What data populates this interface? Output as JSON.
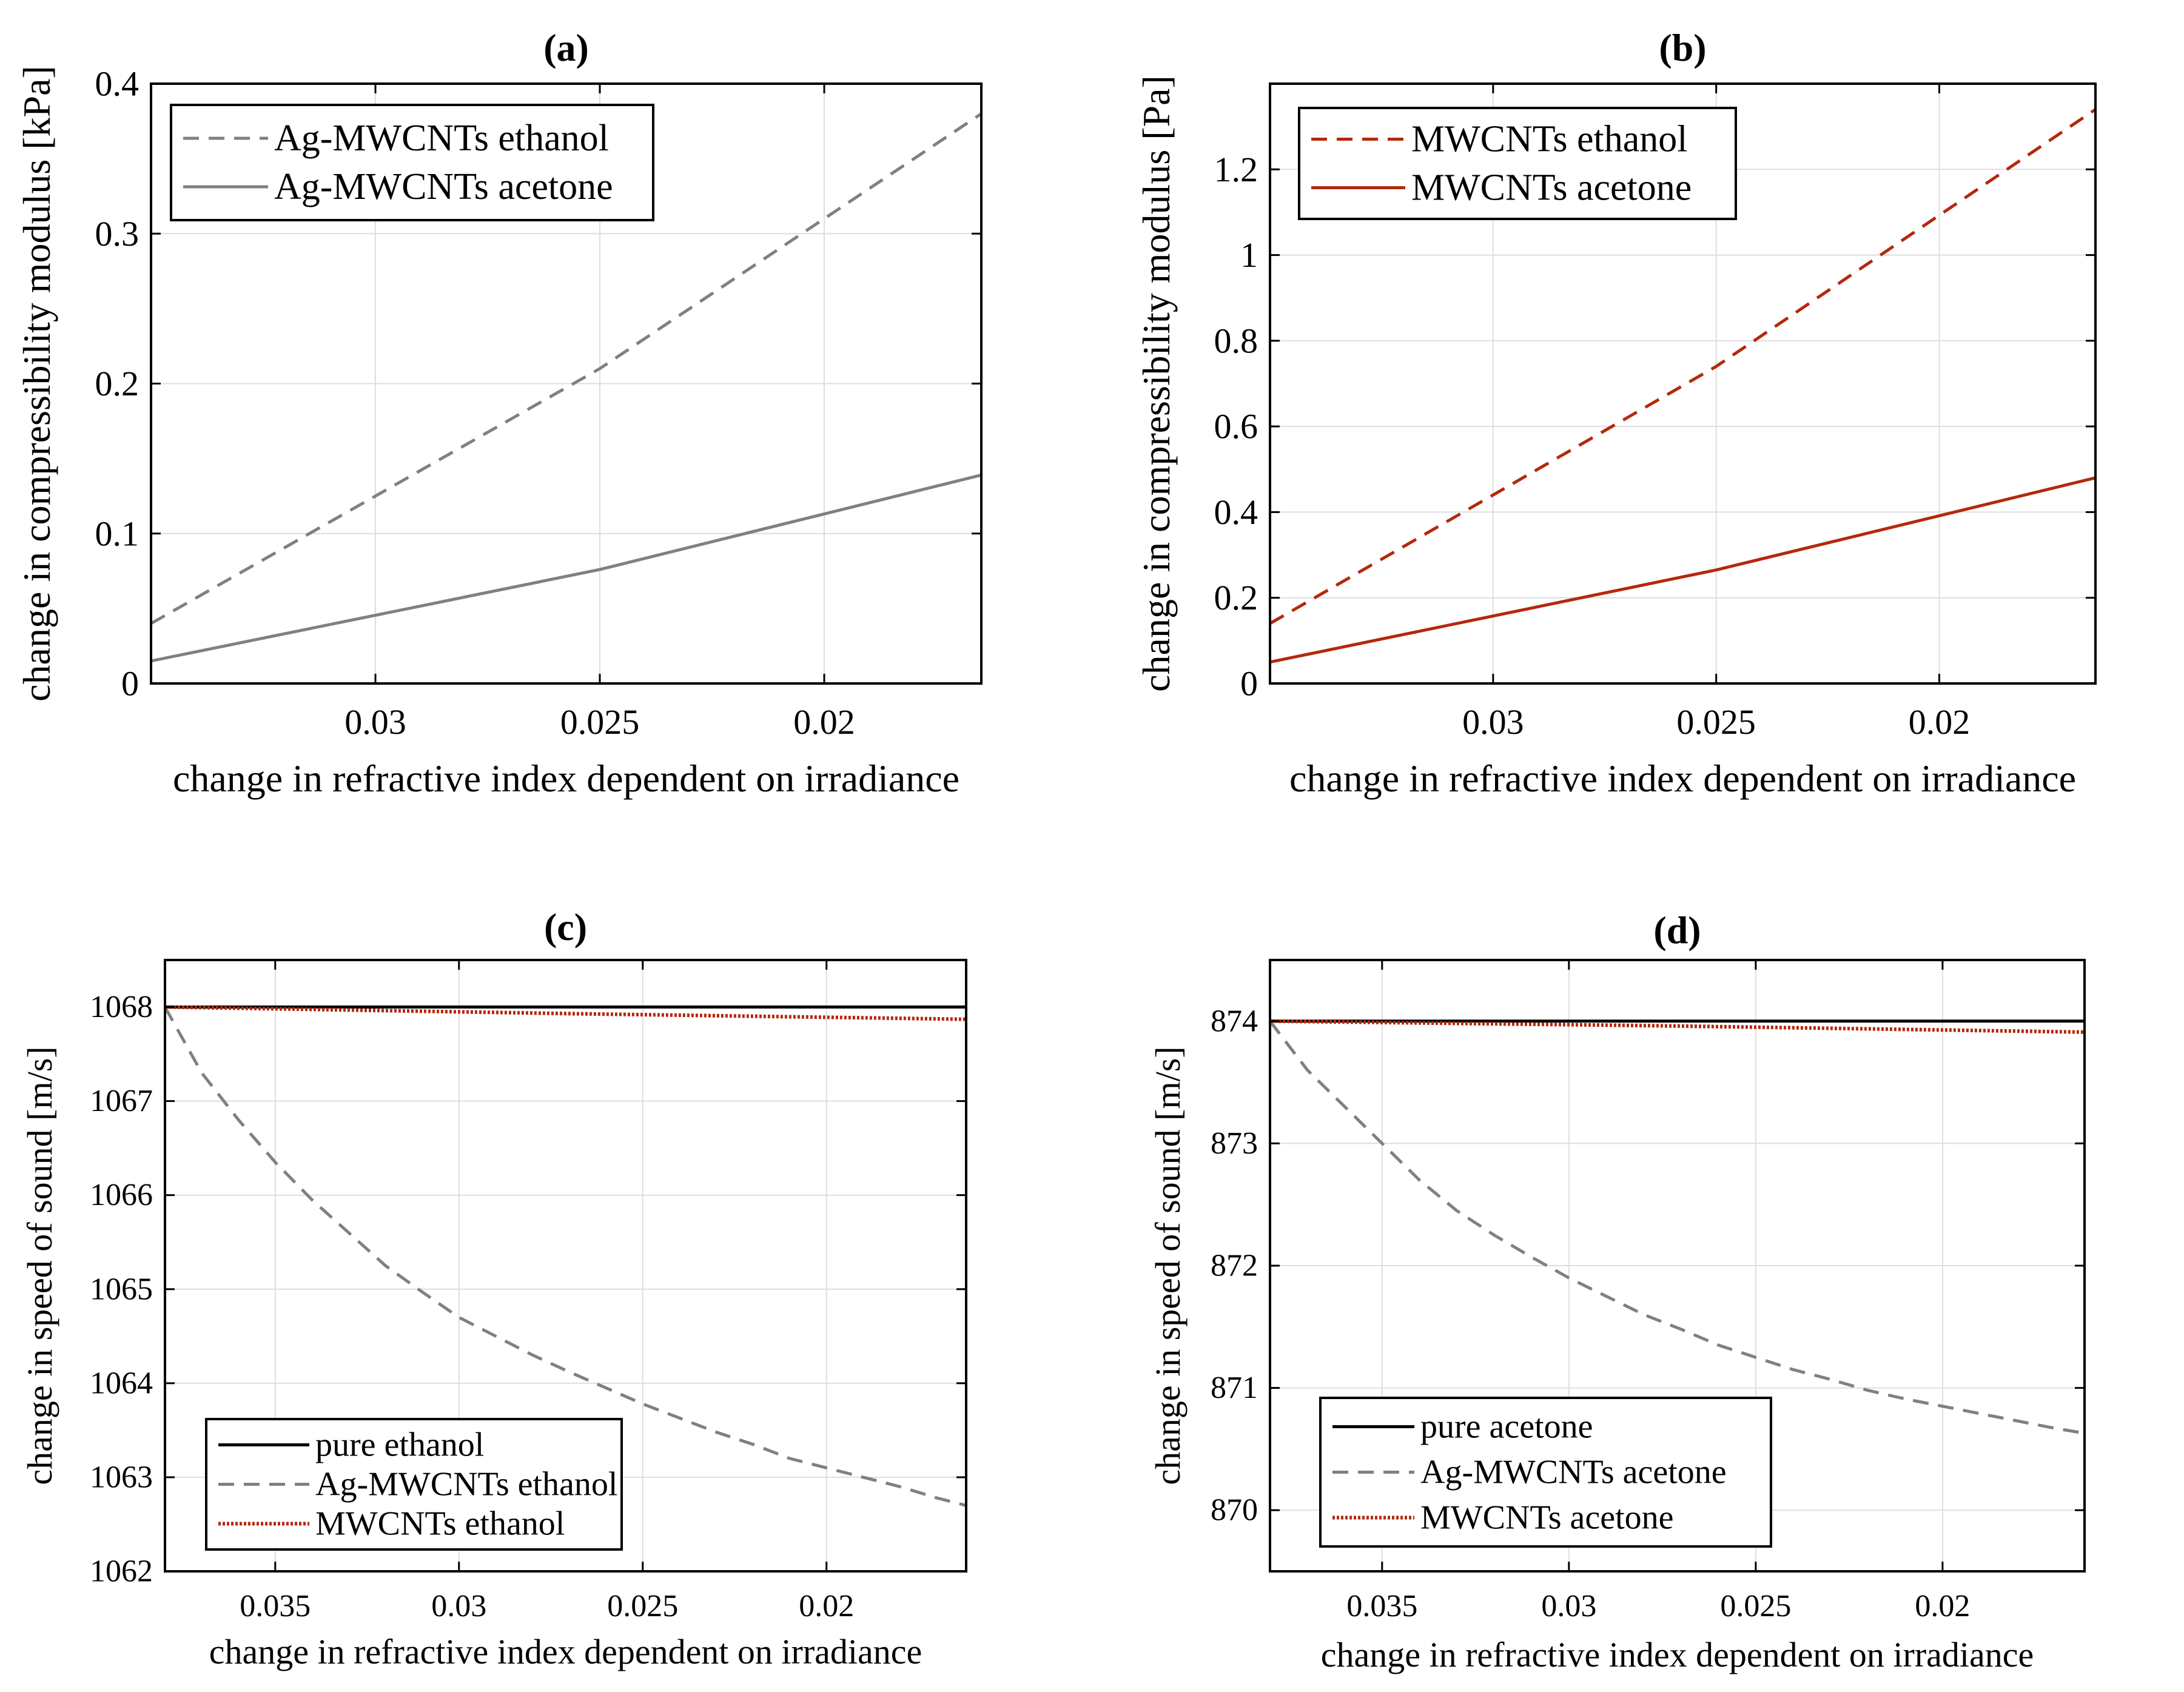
{
  "colors": {
    "gray": "#808080",
    "red": "#b5280c",
    "black": "#000000",
    "grid": "#dedede"
  },
  "chart_data": [
    {
      "id": "a",
      "type": "line",
      "title": "(a)",
      "xlabel": "change in refractive index dependent on irradiance",
      "ylabel": "change in compressibility modulus [kPa]",
      "x_reversed": true,
      "xlim": [
        0.035,
        0.0165
      ],
      "ylim": [
        0,
        0.4
      ],
      "xticks": [
        0.03,
        0.025,
        0.02
      ],
      "xticklabels": [
        "0.03",
        "0.025",
        "0.02"
      ],
      "yticks": [
        0,
        0.1,
        0.2,
        0.3,
        0.4
      ],
      "yticklabels": [
        "0",
        "0.1",
        "0.2",
        "0.3",
        "0.4"
      ],
      "grid": true,
      "legend": {
        "position": "top-left",
        "order": [
          0,
          1
        ]
      },
      "series": [
        {
          "name": "Ag-MWCNTs ethanol",
          "style": "dashed",
          "color": "gray",
          "x": [
            0.035,
            0.025,
            0.0165
          ],
          "y": [
            0.04,
            0.21,
            0.38
          ]
        },
        {
          "name": "Ag-MWCNTs acetone",
          "style": "solid",
          "color": "gray",
          "x": [
            0.035,
            0.025,
            0.0165
          ],
          "y": [
            0.015,
            0.076,
            0.139
          ]
        }
      ]
    },
    {
      "id": "b",
      "type": "line",
      "title": "(b)",
      "xlabel": "change in refractive index dependent on irradiance",
      "ylabel": "change in compressibility modulus [Pa]",
      "x_reversed": true,
      "xlim": [
        0.035,
        0.0165
      ],
      "ylim": [
        0,
        1.4
      ],
      "xticks": [
        0.03,
        0.025,
        0.02
      ],
      "xticklabels": [
        "0.03",
        "0.025",
        "0.02"
      ],
      "yticks": [
        0,
        0.2,
        0.4,
        0.6,
        0.8,
        1,
        1.2
      ],
      "yticklabels": [
        "0",
        "0.2",
        "0.4",
        "0.6",
        "0.8",
        "1",
        "1.2"
      ],
      "grid": true,
      "legend": {
        "position": "top-left",
        "order": [
          0,
          1
        ]
      },
      "series": [
        {
          "name": "MWCNTs ethanol",
          "style": "dashed",
          "color": "red",
          "x": [
            0.035,
            0.025,
            0.0165
          ],
          "y": [
            0.14,
            0.74,
            1.34
          ]
        },
        {
          "name": "MWCNTs acetone",
          "style": "solid",
          "color": "red",
          "x": [
            0.035,
            0.025,
            0.0165
          ],
          "y": [
            0.05,
            0.265,
            0.48
          ]
        }
      ]
    },
    {
      "id": "c",
      "type": "line",
      "title": "(c)",
      "xlabel": "change in refractive index dependent on irradiance",
      "ylabel": "change in speed of sound [m/s]",
      "x_reversed": true,
      "xlim": [
        0.038,
        0.0162
      ],
      "ylim": [
        1062,
        1068.5
      ],
      "xticks": [
        0.035,
        0.03,
        0.025,
        0.02
      ],
      "xticklabels": [
        "0.035",
        "0.03",
        "0.025",
        "0.02"
      ],
      "yticks": [
        1062,
        1063,
        1064,
        1065,
        1066,
        1067,
        1068
      ],
      "yticklabels": [
        "1062",
        "1063",
        "1064",
        "1065",
        "1066",
        "1067",
        "1068"
      ],
      "grid": true,
      "legend": {
        "position": "bottom-left",
        "order": [
          0,
          1,
          2
        ]
      },
      "series": [
        {
          "name": "pure ethanol",
          "style": "solid",
          "color": "black",
          "x": [
            0.038,
            0.0162
          ],
          "y": [
            1068,
            1068
          ]
        },
        {
          "name": "Ag-MWCNTs ethanol",
          "style": "dashed",
          "color": "gray",
          "x": [
            0.038,
            0.037,
            0.036,
            0.035,
            0.034,
            0.033,
            0.032,
            0.031,
            0.03,
            0.029,
            0.028,
            0.027,
            0.026,
            0.025,
            0.024,
            0.023,
            0.022,
            0.021,
            0.02,
            0.019,
            0.018,
            0.017,
            0.0162
          ],
          "y": [
            1068.0,
            1067.3,
            1066.8,
            1066.35,
            1065.95,
            1065.6,
            1065.25,
            1064.97,
            1064.7,
            1064.5,
            1064.3,
            1064.12,
            1063.95,
            1063.78,
            1063.63,
            1063.48,
            1063.35,
            1063.2,
            1063.1,
            1063.0,
            1062.9,
            1062.78,
            1062.7
          ]
        },
        {
          "name": "MWCNTs ethanol",
          "style": "dotted",
          "color": "red",
          "x": [
            0.038,
            0.027,
            0.0162
          ],
          "y": [
            1068,
            1067.93,
            1067.87
          ]
        }
      ]
    },
    {
      "id": "d",
      "type": "line",
      "title": "(d)",
      "xlabel": "change in refractive index dependent on irradiance",
      "ylabel": "change in speed of sound [m/s]",
      "x_reversed": true,
      "xlim": [
        0.038,
        0.0162
      ],
      "ylim": [
        869.5,
        874.5
      ],
      "xticks": [
        0.035,
        0.03,
        0.025,
        0.02
      ],
      "xticklabels": [
        "0.035",
        "0.03",
        "0.025",
        "0.02"
      ],
      "yticks": [
        870,
        871,
        872,
        873,
        874
      ],
      "yticklabels": [
        "870",
        "871",
        "872",
        "873",
        "874"
      ],
      "grid": true,
      "legend": {
        "position": "bottom-left",
        "order": [
          0,
          1,
          2
        ]
      },
      "series": [
        {
          "name": "pure acetone",
          "style": "solid",
          "color": "black",
          "x": [
            0.038,
            0.0162
          ],
          "y": [
            874,
            874
          ]
        },
        {
          "name": "Ag-MWCNTs acetone",
          "style": "dashed",
          "color": "gray",
          "x": [
            0.038,
            0.037,
            0.036,
            0.035,
            0.034,
            0.033,
            0.032,
            0.031,
            0.03,
            0.029,
            0.028,
            0.027,
            0.026,
            0.025,
            0.024,
            0.023,
            0.022,
            0.021,
            0.02,
            0.019,
            0.018,
            0.017,
            0.0162
          ],
          "y": [
            874.0,
            873.6,
            873.3,
            873.0,
            872.7,
            872.45,
            872.25,
            872.07,
            871.9,
            871.75,
            871.6,
            871.48,
            871.35,
            871.25,
            871.15,
            871.07,
            870.98,
            870.91,
            870.85,
            870.79,
            870.73,
            870.67,
            870.63
          ]
        },
        {
          "name": "MWCNTs acetone",
          "style": "dotted",
          "color": "red",
          "x": [
            0.038,
            0.027,
            0.0162
          ],
          "y": [
            874,
            873.96,
            873.91
          ]
        }
      ]
    }
  ]
}
